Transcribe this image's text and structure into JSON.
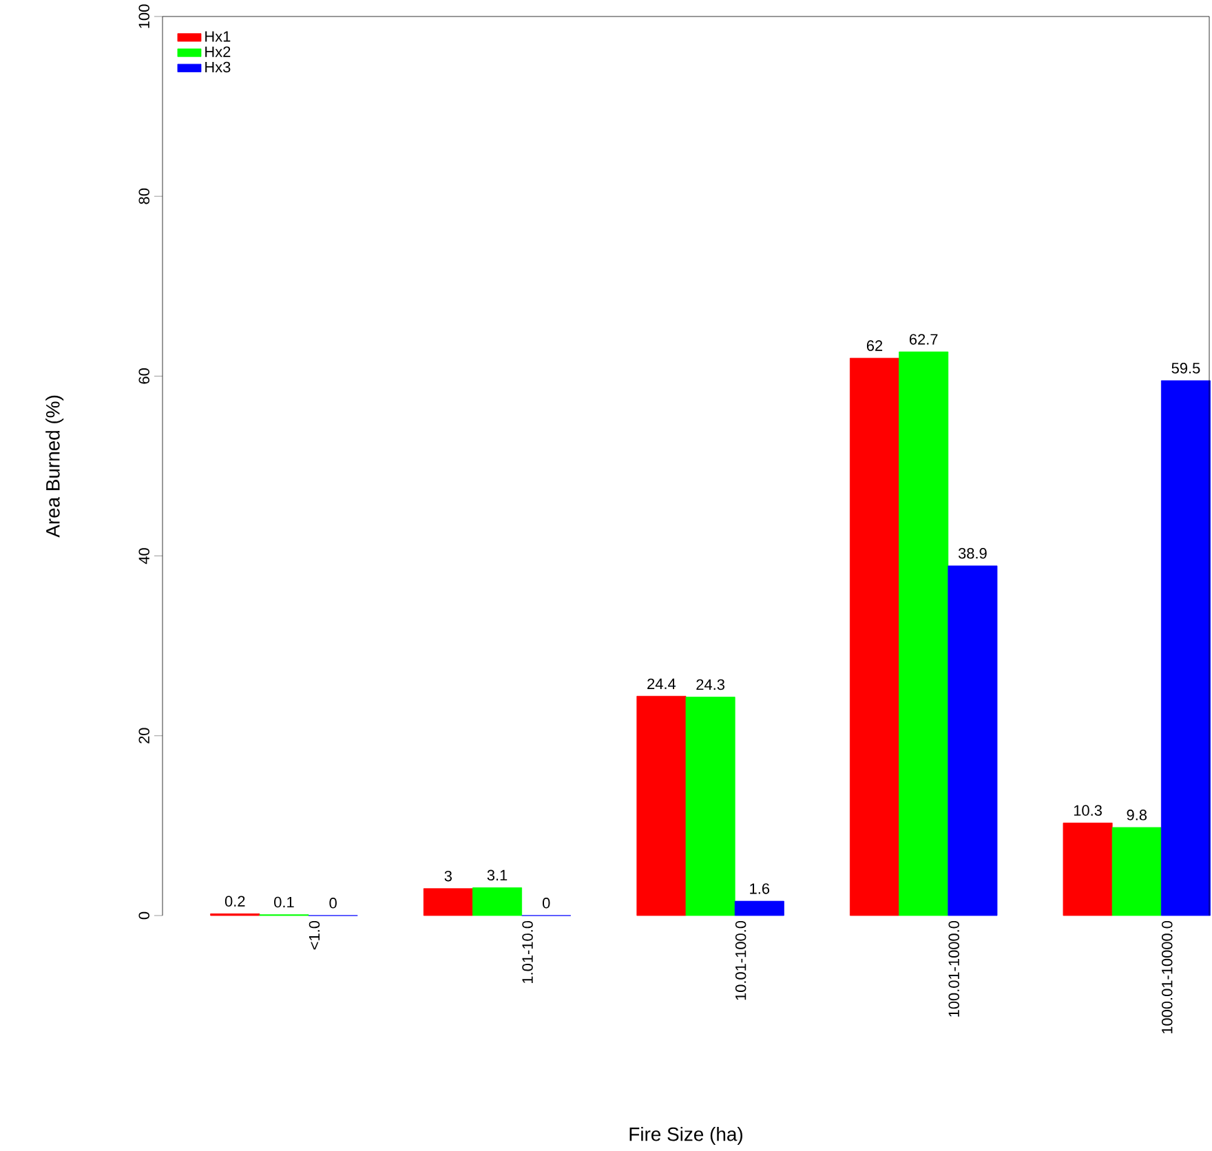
{
  "chart_data": {
    "type": "bar",
    "xlabel": "Fire Size (ha)",
    "ylabel": "Area Burned (%)",
    "categories": [
      "<1.0",
      "1.01-10.0",
      "10.01-100.0",
      "100.01-1000.0",
      "1000.01-10000.0"
    ],
    "series": [
      {
        "name": "Hx1",
        "color": "#ff0000",
        "values": [
          0.2,
          3,
          24.4,
          62,
          10.3
        ]
      },
      {
        "name": "Hx2",
        "color": "#00ff00",
        "values": [
          0.1,
          3.1,
          24.3,
          62.7,
          9.8
        ]
      },
      {
        "name": "Hx3",
        "color": "#0000ff",
        "values": [
          0,
          0,
          1.6,
          38.9,
          59.5
        ]
      }
    ],
    "ylim": [
      0,
      100
    ],
    "yticks": [
      0,
      20,
      40,
      60,
      80,
      100
    ],
    "data_labels": true,
    "legend": "top left"
  }
}
